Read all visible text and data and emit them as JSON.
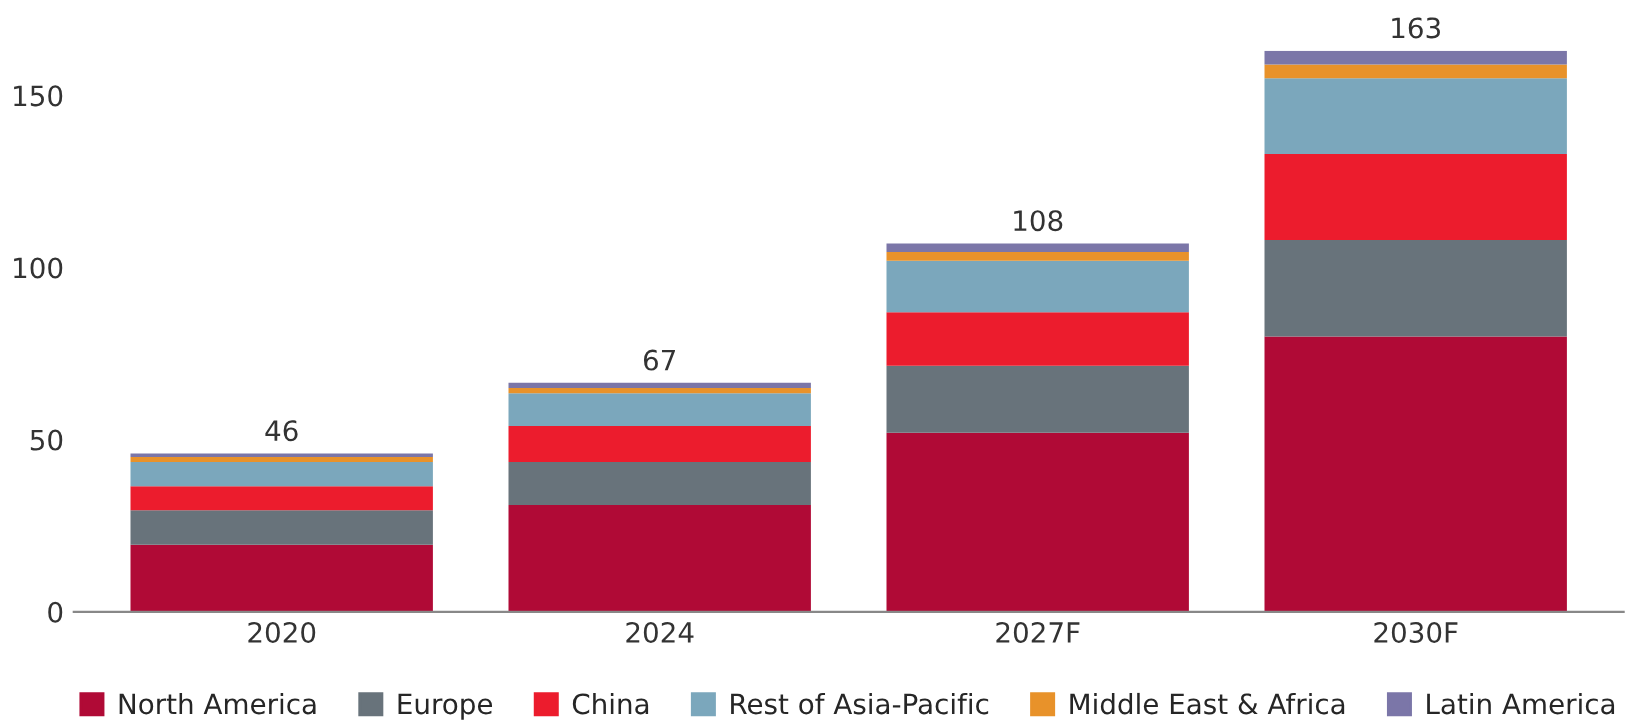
{
  "chart_data": {
    "type": "bar",
    "stacked": true,
    "categories": [
      "2020",
      "2024",
      "2027F",
      "2030F"
    ],
    "series": [
      {
        "name": "North America",
        "color": "#b00a36",
        "values": [
          19.5,
          31,
          52,
          80
        ]
      },
      {
        "name": "Europe",
        "color": "#68737b",
        "values": [
          10,
          12.5,
          19.5,
          28
        ]
      },
      {
        "name": "China",
        "color": "#ec1c2d",
        "values": [
          7,
          10.5,
          15.5,
          25
        ]
      },
      {
        "name": "Rest of Asia-Pacific",
        "color": "#7ba7bc",
        "values": [
          7,
          9.5,
          15,
          22
        ]
      },
      {
        "name": "Middle East & Africa",
        "color": "#e8922a",
        "values": [
          1.5,
          1.5,
          2.5,
          4
        ]
      },
      {
        "name": "Latin America",
        "color": "#7b76a8",
        "values": [
          1,
          1.5,
          2.5,
          4
        ]
      }
    ],
    "totals": [
      "46",
      "67",
      "108",
      "163"
    ],
    "ylim": [
      0,
      163
    ],
    "yticks": [
      0,
      50,
      100,
      150
    ],
    "grid": false,
    "legend": "bottom"
  }
}
